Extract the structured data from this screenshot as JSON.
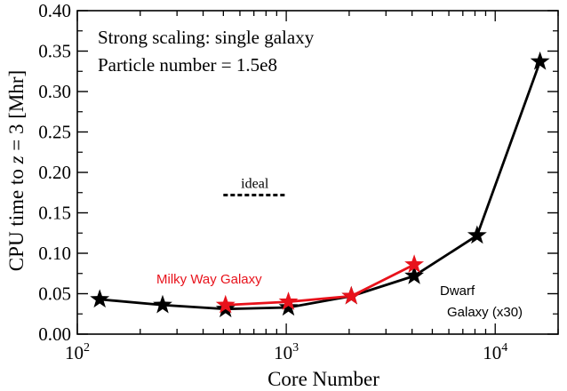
{
  "chart_data": {
    "type": "line",
    "title_lines": [
      "Strong scaling: single galaxy",
      "Particle number = 1.5e8"
    ],
    "xlabel": "Core Number",
    "ylabel_parts": [
      "CPU time to ",
      "z",
      " = 3 [Mhr]"
    ],
    "xscale": "log",
    "xlim": [
      100,
      20000
    ],
    "ylim": [
      0,
      0.4
    ],
    "yticks": [
      0.0,
      0.05,
      0.1,
      0.15,
      0.2,
      0.25,
      0.3,
      0.35,
      0.4
    ],
    "ytick_labels": [
      "0.00",
      "0.05",
      "0.10",
      "0.15",
      "0.20",
      "0.25",
      "0.30",
      "0.35",
      "0.40"
    ],
    "xticks": [
      {
        "value": 100,
        "base": "10",
        "exp": "2"
      },
      {
        "value": 1000,
        "base": "10",
        "exp": "3"
      },
      {
        "value": 10000,
        "base": "10",
        "exp": "4"
      }
    ],
    "grid": false,
    "series": [
      {
        "name": "Milky Way Galaxy",
        "color": "#e8121b",
        "marker": "star",
        "x": [
          512,
          1024,
          2048,
          4096
        ],
        "y": [
          0.036,
          0.04,
          0.047,
          0.086
        ]
      },
      {
        "name": "Dwarf Galaxy (x30)",
        "name_lines": [
          "Dwarf",
          "Galaxy (x30)"
        ],
        "color": "#000000",
        "marker": "star",
        "x": [
          128,
          256,
          512,
          1024,
          2048,
          4096,
          8192,
          16384
        ],
        "y": [
          0.043,
          0.036,
          0.031,
          0.033,
          0.047,
          0.072,
          0.122,
          0.337
        ]
      }
    ],
    "ideal": {
      "label": "ideal",
      "x": [
        500,
        1000
      ],
      "y": 0.172
    }
  }
}
